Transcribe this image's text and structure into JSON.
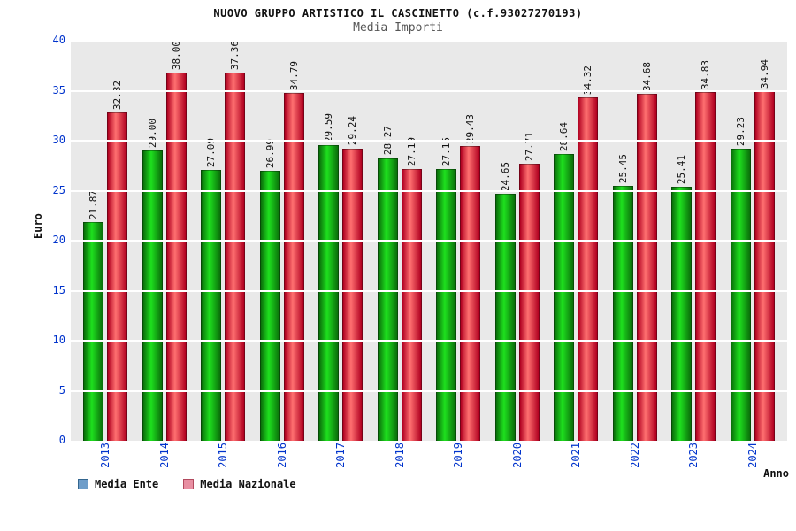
{
  "header": {
    "title": "NUOVO GRUPPO ARTISTICO IL CASCINETTO (c.f.93027270193)",
    "subtitle": "Media Importi"
  },
  "axes": {
    "y_title": "Euro",
    "x_title": "Anno"
  },
  "legend": [
    {
      "label": "Media Ente",
      "swatch": "#6e9dc9",
      "swatch_border": "#33668f"
    },
    {
      "label": "Media Nazionale",
      "swatch": "#e88fa2",
      "swatch_border": "#b24a5e"
    }
  ],
  "colors": {
    "plot_background": "#e9e9e9",
    "gridline": "#ffffff",
    "axis_tick_text": "#0033cc",
    "ente_bar_edge": "#0a6e0a",
    "ente_bar_center": "#1ee01e",
    "nazionale_bar_edge": "#b00020",
    "nazionale_bar_center": "#ff7070"
  },
  "chart_data": {
    "type": "bar",
    "title": "NUOVO GRUPPO ARTISTICO IL CASCINETTO (c.f.93027270193)",
    "subtitle": "Media Importi",
    "xlabel": "Anno",
    "ylabel": "Euro",
    "ylim": [
      0,
      40
    ],
    "yticks": [
      0,
      5,
      10,
      15,
      20,
      25,
      30,
      35,
      40
    ],
    "grid": true,
    "legend_position": "bottom",
    "categories": [
      "2013",
      "2014",
      "2015",
      "2016",
      "2017",
      "2018",
      "2019",
      "2020",
      "2021",
      "2022",
      "2023",
      "2024"
    ],
    "series": [
      {
        "name": "Media Ente",
        "edge_color": "#0a6e0a",
        "center_color": "#1ee01e",
        "values": [
          21.87,
          29.0,
          27.09,
          26.99,
          29.59,
          28.27,
          27.15,
          24.65,
          28.64,
          25.45,
          25.41,
          29.23
        ]
      },
      {
        "name": "Media Nazionale",
        "edge_color": "#b00020",
        "center_color": "#ff7070",
        "values": [
          32.82,
          38.0,
          37.36,
          34.79,
          29.24,
          27.19,
          29.43,
          27.71,
          34.32,
          34.68,
          34.83,
          34.94
        ]
      }
    ]
  }
}
